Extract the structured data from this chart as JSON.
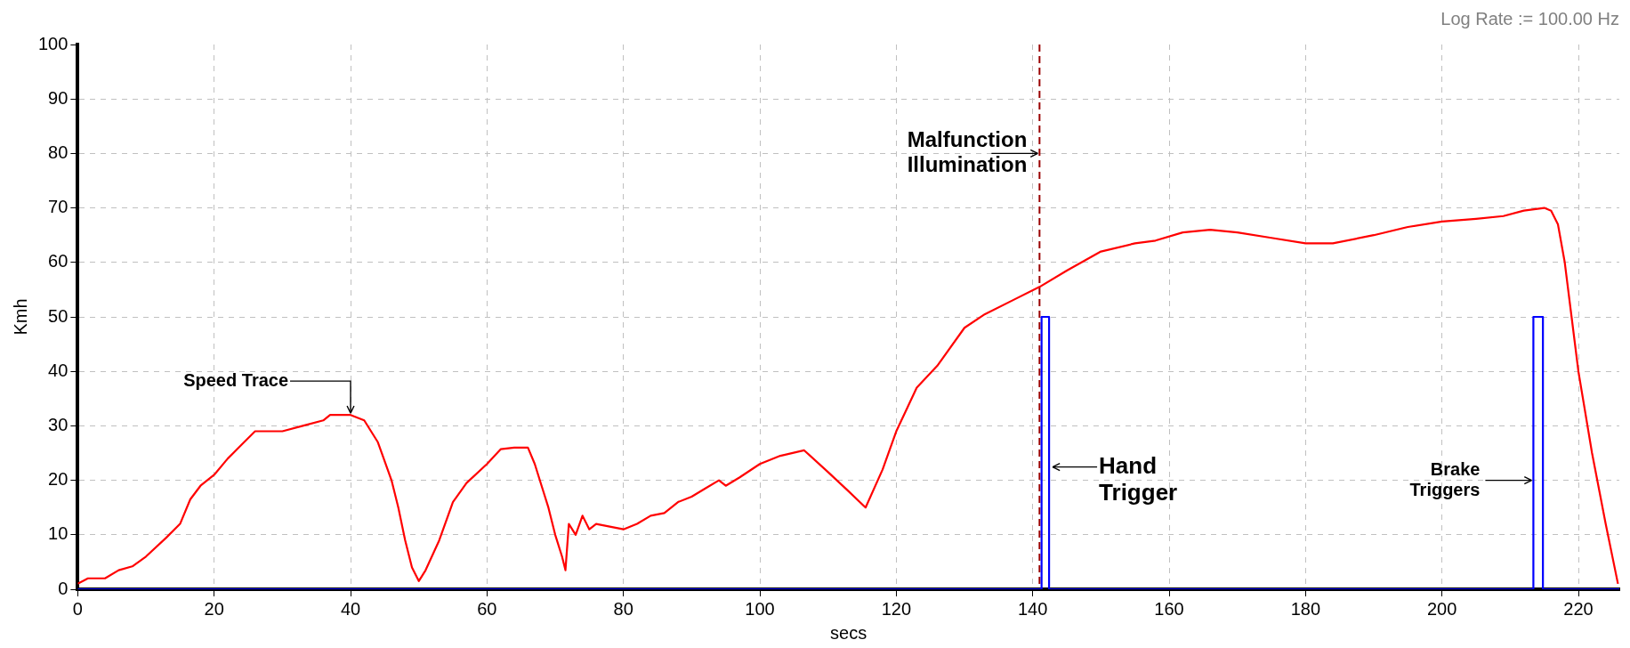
{
  "chart_data": {
    "type": "line",
    "xlabel": "secs",
    "ylabel": "Kmh",
    "xlim": [
      0,
      226
    ],
    "xticks": [
      0,
      20,
      40,
      60,
      80,
      100,
      120,
      140,
      160,
      180,
      200,
      220
    ],
    "ylim": [
      0,
      100
    ],
    "yticks": [
      0,
      10,
      20,
      30,
      40,
      50,
      60,
      70,
      80,
      90,
      100
    ],
    "grid": true,
    "legend": false,
    "marker": "none",
    "line_style": "solid",
    "series": [
      {
        "color": "#ff0000",
        "x": [
          0,
          1.5,
          4,
          6,
          8,
          10,
          13,
          15,
          16.5,
          18,
          20,
          22,
          24,
          26,
          30,
          33,
          36,
          37,
          40,
          42,
          44,
          46,
          47,
          48,
          49,
          50,
          51,
          53,
          55,
          57,
          60,
          62,
          64,
          66,
          67,
          68,
          69,
          70,
          71,
          71.5,
          72,
          73,
          74,
          75,
          76,
          78,
          80,
          82,
          84,
          86,
          88,
          90,
          92,
          94,
          95,
          97,
          100,
          103,
          106.5,
          110,
          113,
          115.5,
          118,
          120,
          123,
          126,
          130,
          133,
          137,
          141,
          145,
          150,
          155,
          158,
          162,
          166,
          170,
          175,
          180,
          184,
          190,
          195,
          200,
          205,
          209,
          212,
          215,
          216,
          217,
          218,
          219,
          220,
          222,
          224,
          225.8
        ],
        "values": [
          1,
          2,
          2,
          3.5,
          4.2,
          6,
          9.5,
          12,
          16.5,
          19,
          21,
          24,
          26.5,
          29,
          29,
          30,
          31,
          32,
          32,
          31,
          27,
          20,
          15,
          9,
          4,
          1.5,
          3.5,
          9,
          16,
          19.5,
          23,
          25.7,
          26,
          26,
          23,
          19,
          15,
          10,
          6,
          3.5,
          12,
          10,
          13.5,
          11,
          12,
          11.5,
          11,
          12,
          13.5,
          14,
          16,
          17,
          18.5,
          20,
          19,
          20.5,
          23,
          24.5,
          25.5,
          21.5,
          18,
          15,
          22,
          29,
          37,
          41,
          48,
          50.5,
          53,
          55.5,
          58.5,
          62,
          63.5,
          64,
          65.5,
          66,
          65.5,
          64.5,
          63.5,
          63.5,
          65,
          66.5,
          67.5,
          68,
          68.5,
          69.5,
          70,
          69.5,
          67,
          60,
          50,
          40,
          25,
          12,
          1
        ]
      },
      {
        "color": "#0000ff",
        "x": [
          0,
          141.3,
          141.3,
          142.4,
          142.4,
          213.4,
          213.4,
          214.8,
          214.8,
          226
        ],
        "values": [
          0,
          0,
          50,
          50,
          0,
          0,
          50,
          50,
          0,
          0
        ]
      }
    ],
    "ref_lines": [
      {
        "axis": "x",
        "value": 141,
        "color": "#990000",
        "line_style": "dashed"
      }
    ],
    "annotations": [
      {
        "text": "Speed Trace",
        "x": 40,
        "y": 32
      },
      {
        "text": "Malfunction\nIllumination",
        "x": 141,
        "y": 80
      },
      {
        "text": "Hand\nTrigger",
        "x": 142.4,
        "y": 20
      },
      {
        "text": "Brake\nTriggers",
        "x": 213.4,
        "y": 20
      },
      "Log Rate := 100.00 Hz"
    ]
  }
}
